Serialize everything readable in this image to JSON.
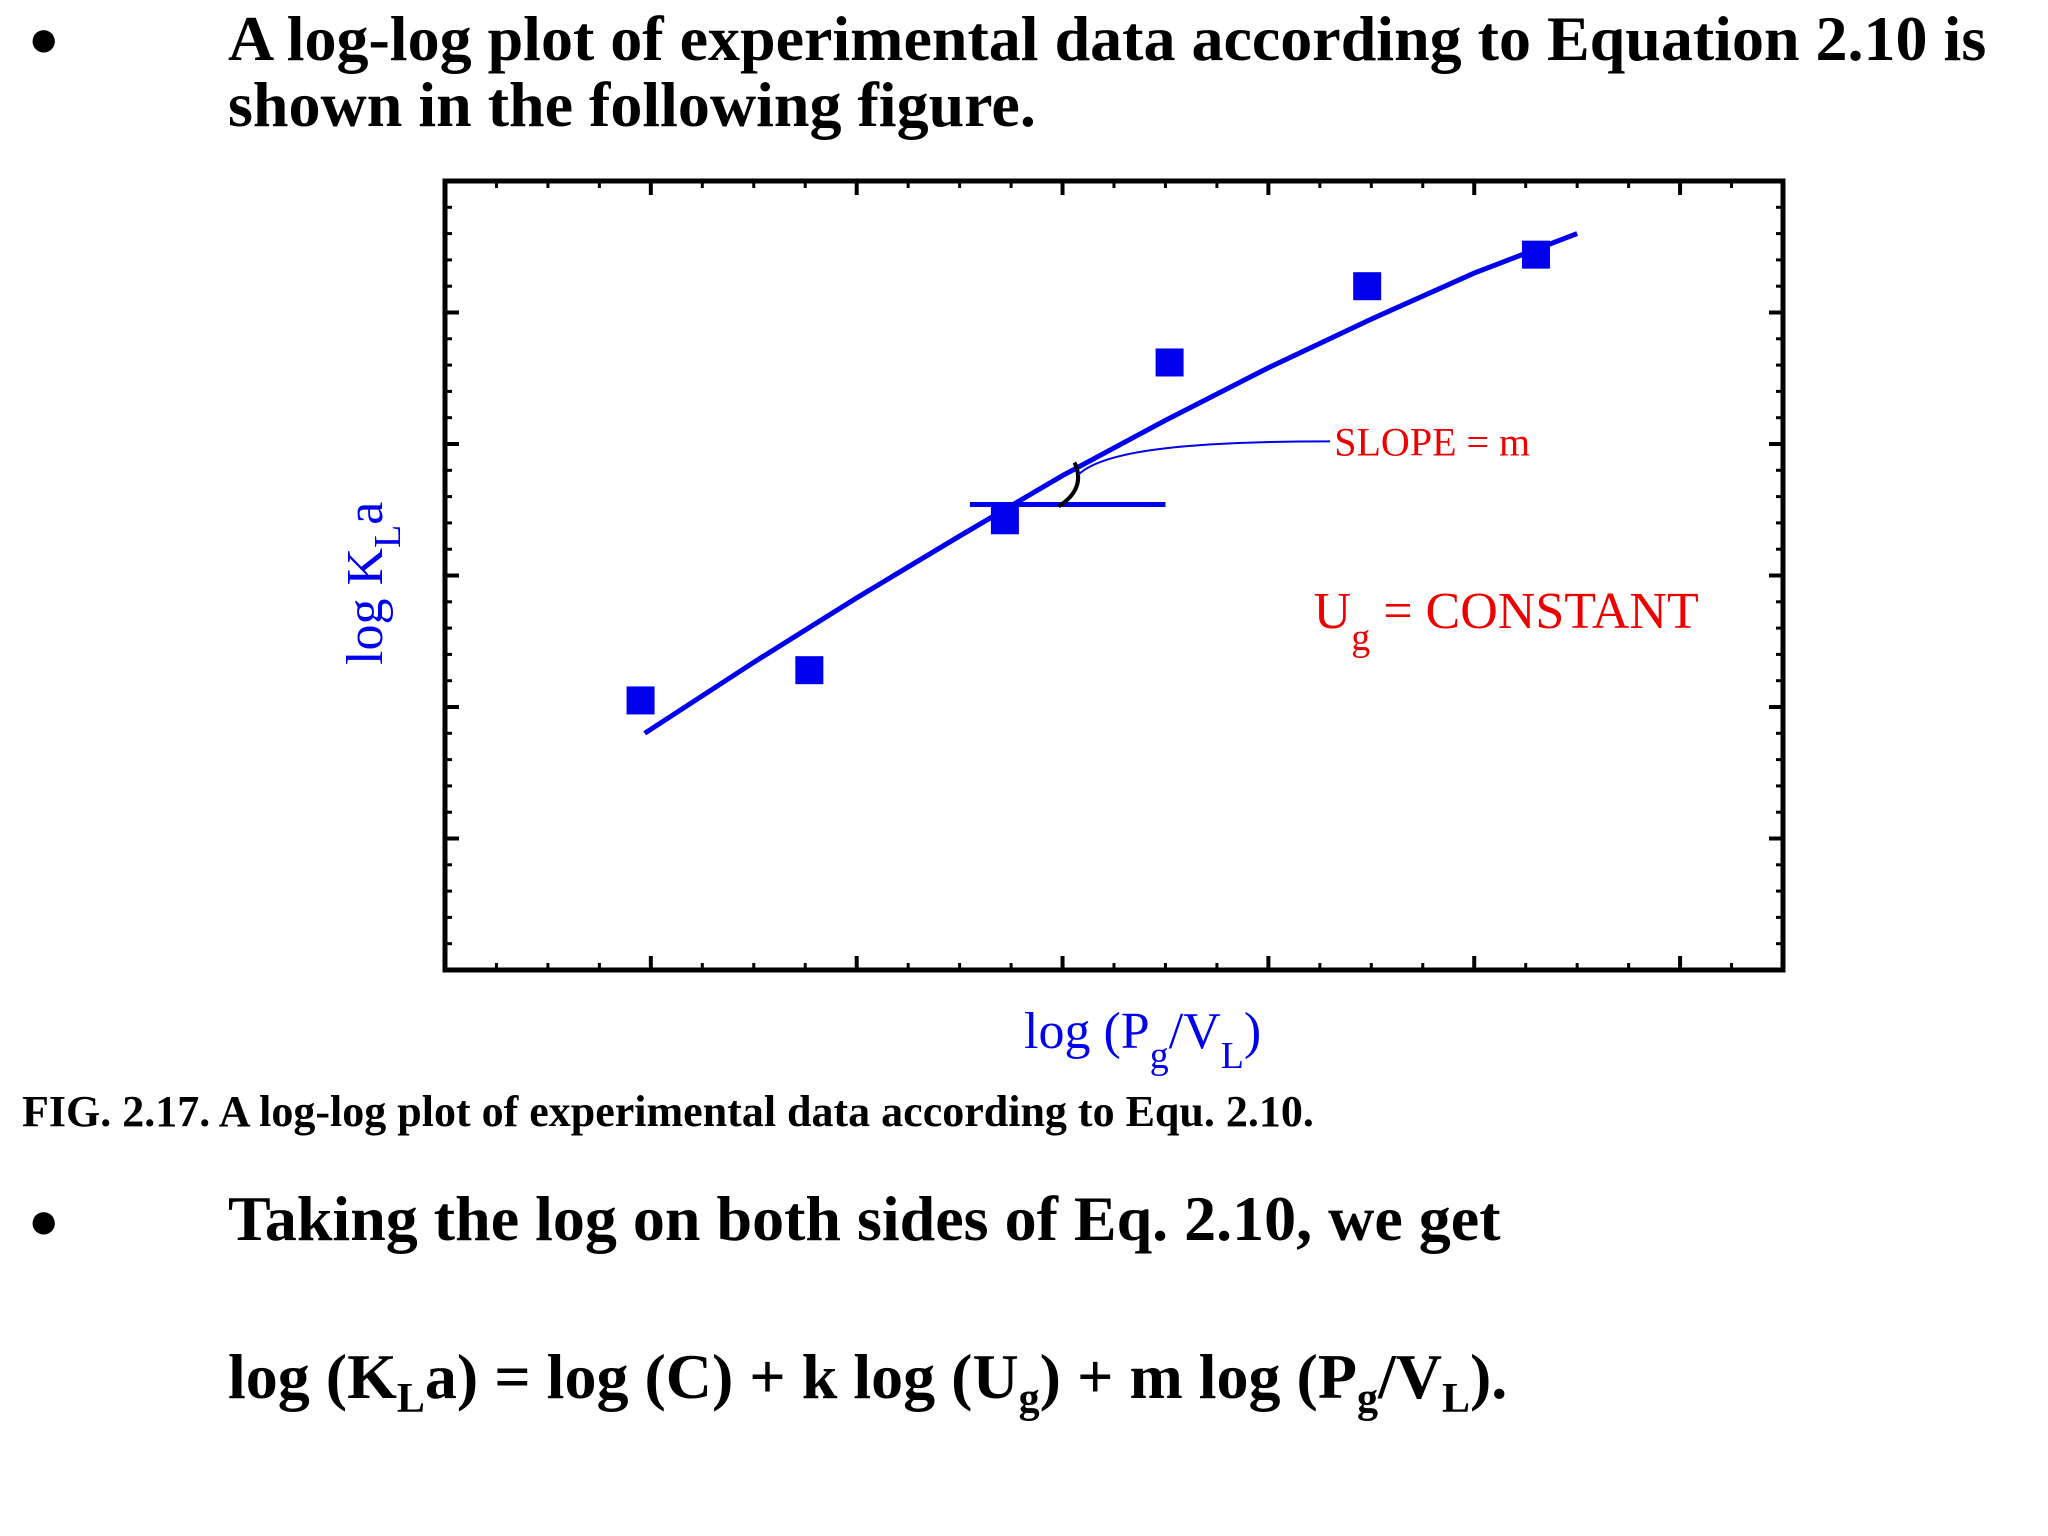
{
  "slide": {
    "bullet_symbol": "●",
    "para1": "A log-log plot of experimental data according to Equation 2.10 is shown in the following figure.",
    "caption": "FIG. 2.17. A log-log plot of experimental data according to Equ. 2.10.",
    "para2": "Taking the log on both sides of Eq. 2.10, we get",
    "equation": {
      "part1": "log (K",
      "sub1": "L",
      "part2": "a) = log (C) + k log (U",
      "sub2": "g",
      "part3": ") + m log (P",
      "sub3": "g",
      "part4": "/V",
      "sub4": "L",
      "part5": ")."
    }
  },
  "colors": {
    "series": "#0000ee",
    "annotation": "#ee0000",
    "frame": "#000000"
  },
  "chart_data": {
    "type": "scatter",
    "title": "",
    "xlabel": {
      "main": "log (P",
      "sub1": "g",
      "mid": "/V",
      "sub2": "L",
      "end": ")"
    },
    "ylabel": {
      "main": "log K",
      "sub": "L",
      "end": "a"
    },
    "xlim": [
      0,
      6.5
    ],
    "ylim": [
      0,
      6
    ],
    "x_ticks_major": [
      1,
      2,
      3,
      4,
      5,
      6
    ],
    "y_ticks_major": [
      1,
      2,
      3,
      4,
      5
    ],
    "tick_labels_shown": false,
    "series": [
      {
        "marker": "square",
        "x": [
          0.95,
          1.77,
          2.72,
          3.52,
          4.48,
          5.3
        ],
        "y": [
          2.05,
          2.28,
          3.42,
          4.62,
          5.2,
          5.44
        ]
      }
    ],
    "fit_curve": {
      "x": [
        0.97,
        1.5,
        2.0,
        2.5,
        3.0,
        3.5,
        4.0,
        4.5,
        5.0,
        5.5
      ],
      "y": [
        1.8,
        2.34,
        2.83,
        3.3,
        3.76,
        4.18,
        4.58,
        4.95,
        5.3,
        5.6
      ]
    },
    "tangent": {
      "x": [
        2.55,
        3.5
      ],
      "y": [
        3.54,
        3.54
      ]
    },
    "annotations": [
      {
        "text": "SLOPE = m"
      },
      {
        "main": "U",
        "sub": "g",
        "rest": " = CONSTANT"
      }
    ]
  }
}
